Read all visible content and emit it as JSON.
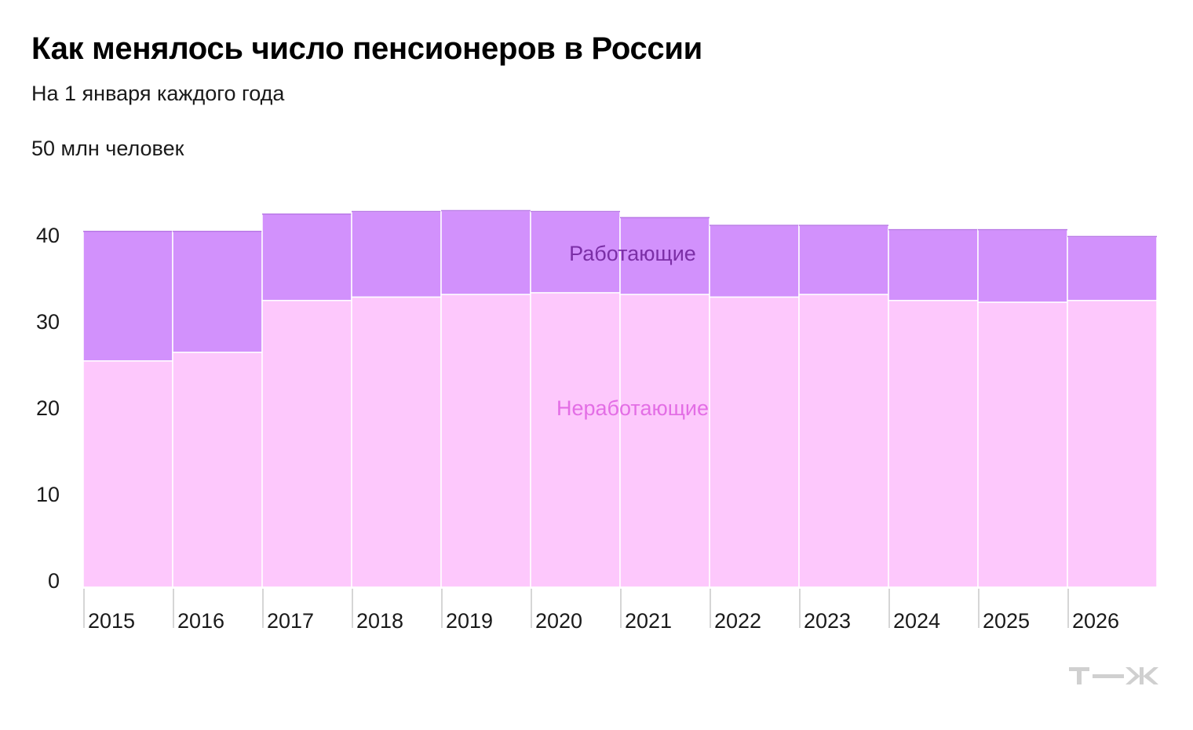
{
  "title": "Как менялось число пенсионеров в России",
  "subtitle": "На 1 января каждого года",
  "unit_label": "50 млн человек",
  "logo": "Т—Ж",
  "colors": {
    "working": "#d291fc",
    "non_working": "#fdc8fc",
    "working_label": "#7b2fa6",
    "non_working_label": "#e36ee5",
    "axis": "#c8c8c8",
    "text": "#1a1a1a",
    "logo": "#d0d0d0"
  },
  "chart_data": {
    "type": "bar",
    "stacked": true,
    "categories": [
      "2015",
      "2016",
      "2017",
      "2018",
      "2019",
      "2020",
      "2021",
      "2022",
      "2023",
      "2024",
      "2025",
      "2026"
    ],
    "series": [
      {
        "name": "Неработающие",
        "values": [
          26.2,
          27.2,
          33.2,
          33.6,
          33.9,
          34.1,
          33.9,
          33.6,
          33.9,
          33.2,
          33.0,
          33.2
        ]
      },
      {
        "name": "Работающие",
        "values": [
          15.0,
          14.0,
          10.0,
          9.9,
          9.7,
          9.4,
          8.9,
          8.3,
          8.0,
          8.2,
          8.4,
          7.4
        ]
      }
    ],
    "ylim": [
      0,
      50
    ],
    "yticks": [
      "0",
      "10",
      "20",
      "30",
      "40"
    ],
    "ytick_values": [
      0,
      10,
      20,
      30,
      40
    ],
    "title": "Как менялось число пенсионеров в России",
    "subtitle": "На 1 января каждого года",
    "ylabel": "50 млн человек",
    "grid": false
  }
}
